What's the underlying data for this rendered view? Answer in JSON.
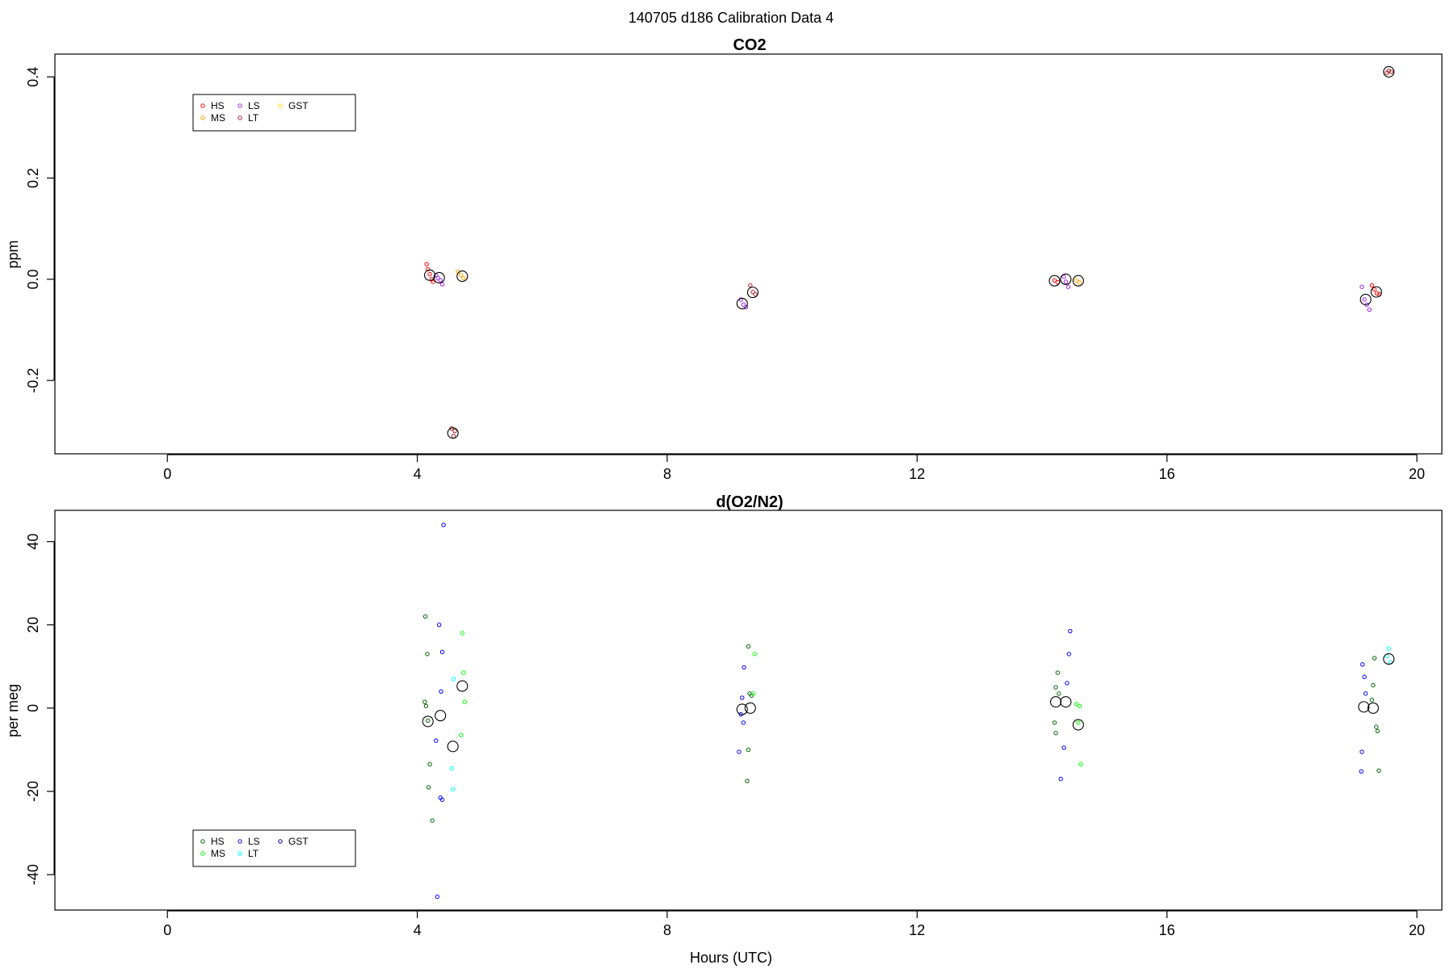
{
  "figure": {
    "title": "140705   d186   Calibration Data 4"
  },
  "chart_data": [
    {
      "type": "scatter",
      "title": "CO2",
      "xlabel": "",
      "ylabel": "ppm",
      "xlim": [
        -1.8,
        20.4
      ],
      "ylim": [
        -0.345,
        0.445
      ],
      "xticks": [
        0,
        4,
        8,
        12,
        16,
        20
      ],
      "xtick_labels": [
        "0",
        "4",
        "8",
        "12",
        "16",
        "20"
      ],
      "yticks": [
        -0.2,
        0.0,
        0.2,
        0.4
      ],
      "ytick_labels": [
        "-0.2",
        "0.0",
        "0.2",
        "0.4"
      ],
      "grid": false,
      "legend": {
        "position": "top-left",
        "columns": 3
      },
      "series": [
        {
          "name": "HS",
          "color": "#ff0000",
          "points": [
            [
              4.15,
              0.03
            ],
            [
              4.17,
              0.02
            ],
            [
              4.2,
              0.01
            ],
            [
              4.23,
              0.0
            ],
            [
              4.25,
              -0.005
            ],
            [
              14.2,
              -0.002
            ],
            [
              14.25,
              -0.006
            ],
            [
              19.28,
              -0.012
            ],
            [
              19.32,
              -0.02
            ],
            [
              19.36,
              -0.028
            ],
            [
              19.4,
              -0.03
            ]
          ],
          "means": [
            [
              4.2,
              0.008
            ],
            [
              14.2,
              -0.003
            ],
            [
              19.35,
              -0.025
            ]
          ]
        },
        {
          "name": "MS",
          "color": "#ffa500",
          "points": [
            [
              4.65,
              0.015
            ],
            [
              4.7,
              0.008
            ],
            [
              4.74,
              0.002
            ],
            [
              14.55,
              -0.002
            ],
            [
              14.6,
              -0.006
            ]
          ],
          "means": [
            [
              4.72,
              0.006
            ],
            [
              14.58,
              -0.003
            ]
          ]
        },
        {
          "name": "LS",
          "color": "#a020f0",
          "points": [
            [
              4.3,
              0.008
            ],
            [
              4.33,
              0.002
            ],
            [
              4.37,
              -0.002
            ],
            [
              4.4,
              -0.01
            ],
            [
              9.18,
              -0.04
            ],
            [
              9.22,
              -0.05
            ],
            [
              9.26,
              -0.055
            ],
            [
              14.35,
              0.005
            ],
            [
              14.38,
              -0.005
            ],
            [
              14.42,
              -0.015
            ],
            [
              19.12,
              -0.015
            ],
            [
              19.16,
              -0.04
            ],
            [
              19.2,
              -0.05
            ],
            [
              19.24,
              -0.06
            ]
          ],
          "means": [
            [
              4.35,
              0.003
            ],
            [
              9.2,
              -0.048
            ],
            [
              14.38,
              0.0
            ],
            [
              19.18,
              -0.04
            ]
          ]
        },
        {
          "name": "LT",
          "color": "#b22222",
          "points": [
            [
              4.55,
              -0.295
            ],
            [
              4.58,
              -0.31
            ],
            [
              4.6,
              -0.3
            ],
            [
              9.33,
              -0.012
            ],
            [
              9.37,
              -0.025
            ],
            [
              9.41,
              -0.03
            ],
            [
              19.52,
              0.408
            ],
            [
              19.55,
              0.412
            ],
            [
              19.59,
              0.41
            ]
          ],
          "means": [
            [
              4.57,
              -0.304
            ],
            [
              9.37,
              -0.026
            ],
            [
              19.55,
              0.41
            ]
          ]
        },
        {
          "name": "GST",
          "color": "#ffd700",
          "points": [],
          "means": []
        }
      ]
    },
    {
      "type": "scatter",
      "title": "d(O2/N2)",
      "xlabel": "Hours (UTC)",
      "ylabel": "per meg",
      "xlim": [
        -1.8,
        20.4
      ],
      "ylim": [
        -48.5,
        47.5
      ],
      "xticks": [
        0,
        4,
        8,
        12,
        16,
        20
      ],
      "xtick_labels": [
        "0",
        "4",
        "8",
        "12",
        "16",
        "20"
      ],
      "yticks": [
        -40,
        -20,
        0,
        20,
        40
      ],
      "ytick_labels": [
        "-40",
        "-20",
        "0",
        "20",
        "40"
      ],
      "grid": false,
      "legend": {
        "position": "bottom-left",
        "columns": 3
      },
      "series": [
        {
          "name": "HS",
          "color": "#006400",
          "points": [
            [
              4.13,
              22
            ],
            [
              4.16,
              13
            ],
            [
              4.12,
              1.5
            ],
            [
              4.14,
              0.5
            ],
            [
              4.17,
              -3
            ],
            [
              4.2,
              -13.5
            ],
            [
              4.18,
              -19
            ],
            [
              4.24,
              -27
            ],
            [
              9.3,
              14.8
            ],
            [
              9.32,
              3.5
            ],
            [
              9.35,
              3
            ],
            [
              9.3,
              -10
            ],
            [
              9.28,
              -17.5
            ],
            [
              14.25,
              8.5
            ],
            [
              14.22,
              5
            ],
            [
              14.27,
              3.5
            ],
            [
              14.2,
              -3.5
            ],
            [
              14.22,
              -6
            ],
            [
              19.32,
              12
            ],
            [
              19.3,
              5.5
            ],
            [
              19.28,
              2
            ],
            [
              19.35,
              -4.5
            ],
            [
              19.37,
              -5.5
            ],
            [
              19.39,
              -15
            ]
          ],
          "means": [
            [
              4.17,
              -3.2
            ],
            [
              9.33,
              0.0
            ],
            [
              14.22,
              1.5
            ],
            [
              19.3,
              0.0
            ]
          ]
        },
        {
          "name": "MS",
          "color": "#00ff00",
          "points": [
            [
              4.72,
              18
            ],
            [
              4.74,
              8.5
            ],
            [
              4.76,
              1.5
            ],
            [
              4.7,
              -6.5
            ],
            [
              9.4,
              13
            ],
            [
              9.38,
              3.5
            ],
            [
              14.55,
              1
            ],
            [
              14.6,
              0.5
            ],
            [
              14.58,
              -3.5
            ],
            [
              14.62,
              -13.5
            ]
          ],
          "means": [
            [
              4.72,
              5.3
            ],
            [
              14.58,
              -4.0
            ]
          ]
        },
        {
          "name": "LS",
          "color": "#0000ff",
          "points": [
            [
              4.42,
              44
            ],
            [
              4.35,
              20
            ],
            [
              4.4,
              13.5
            ],
            [
              4.38,
              4
            ],
            [
              4.3,
              -7.8
            ],
            [
              4.37,
              -21.5
            ],
            [
              4.4,
              -22
            ],
            [
              4.32,
              -45.3
            ],
            [
              9.23,
              9.8
            ],
            [
              9.2,
              2.5
            ],
            [
              9.18,
              -1.5
            ],
            [
              9.22,
              -3.5
            ],
            [
              9.15,
              -10.5
            ],
            [
              14.45,
              18.5
            ],
            [
              14.43,
              13
            ],
            [
              14.4,
              6
            ],
            [
              14.35,
              -9.5
            ],
            [
              14.3,
              -17
            ],
            [
              19.13,
              10.5
            ],
            [
              19.16,
              7.5
            ],
            [
              19.18,
              3.5
            ],
            [
              19.12,
              -10.5
            ],
            [
              19.11,
              -15.2
            ]
          ],
          "means": [
            [
              4.37,
              -1.8
            ],
            [
              9.2,
              -0.3
            ],
            [
              14.38,
              1.5
            ],
            [
              19.15,
              0.3
            ]
          ]
        },
        {
          "name": "LT",
          "color": "#00ffff",
          "points": [
            [
              4.58,
              7
            ],
            [
              4.55,
              -14.5
            ],
            [
              4.57,
              -19.5
            ],
            [
              19.55,
              14.3
            ],
            [
              19.58,
              11
            ],
            [
              19.52,
              12.5
            ]
          ],
          "means": [
            [
              4.57,
              -9.2
            ],
            [
              19.55,
              11.8
            ]
          ]
        },
        {
          "name": "GST",
          "color": "#00008b",
          "points": [],
          "means": []
        }
      ]
    }
  ]
}
